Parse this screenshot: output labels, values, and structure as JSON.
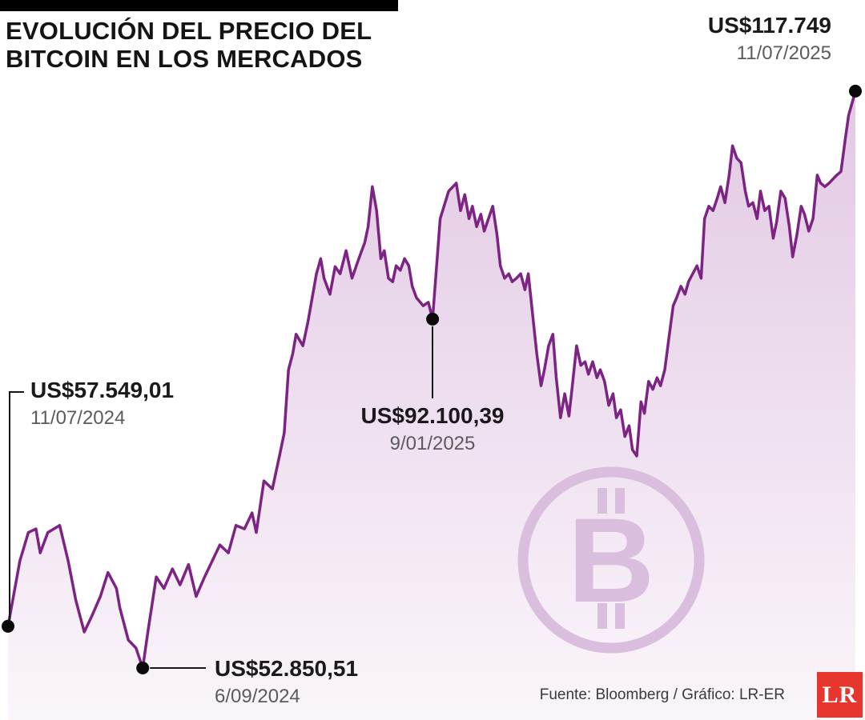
{
  "title": {
    "line1": "EVOLUCIÓN DEL PRECIO DEL",
    "line2": "BITCOIN EN LOS MERCADOS"
  },
  "source": "Fuente: Bloomberg / Gráfico: LR-ER",
  "logo": {
    "text": "LR",
    "color": "#e6362e"
  },
  "colors": {
    "line": "#7c2383",
    "fill_top": "rgba(158,74,164,0.30)",
    "fill_bottom": "rgba(158,74,164,0.05)",
    "watermark": "#d9bedd",
    "dot": "#0a0a0a",
    "connector": "#161616"
  },
  "annotations": [
    {
      "id": "start",
      "value": "US$57.549,01",
      "date": "11/07/2024"
    },
    {
      "id": "low",
      "value": "US$52.850,51",
      "date": "6/09/2024"
    },
    {
      "id": "mid",
      "value": "US$92.100,39",
      "date": "9/01/2025"
    },
    {
      "id": "end",
      "value": "US$117.749",
      "date": "11/07/2025"
    }
  ],
  "chart_data": {
    "type": "area",
    "title": "Evolución del precio del bitcoin en los mercados",
    "x_range": [
      "11/07/2024",
      "11/07/2025"
    ],
    "y_unit": "miles de US$",
    "axes_visible": false,
    "legend": "none",
    "value_domain_kusd": [
      47,
      128
    ],
    "markers": [
      {
        "t": 0.0,
        "value_kusd": 57.549
      },
      {
        "t": 0.159,
        "value_kusd": 52.85
      },
      {
        "t": 0.501,
        "value_kusd": 92.1
      },
      {
        "t": 1.0,
        "value_kusd": 117.749
      }
    ],
    "points": [
      [
        0,
        57.55
      ],
      [
        0.014,
        64.9
      ],
      [
        0.024,
        68.1
      ],
      [
        0.033,
        68.5
      ],
      [
        0.038,
        65.8
      ],
      [
        0.047,
        68.1
      ],
      [
        0.061,
        68.9
      ],
      [
        0.071,
        64.9
      ],
      [
        0.08,
        60.5
      ],
      [
        0.09,
        56.9
      ],
      [
        0.099,
        58.7
      ],
      [
        0.109,
        60.9
      ],
      [
        0.118,
        63.6
      ],
      [
        0.128,
        61.8
      ],
      [
        0.132,
        59.6
      ],
      [
        0.142,
        56
      ],
      [
        0.151,
        55.1
      ],
      [
        0.159,
        52.85
      ],
      [
        0.165,
        56.9
      ],
      [
        0.175,
        63.1
      ],
      [
        0.184,
        61.8
      ],
      [
        0.194,
        64
      ],
      [
        0.203,
        62.2
      ],
      [
        0.213,
        64.5
      ],
      [
        0.222,
        60.9
      ],
      [
        0.232,
        63.1
      ],
      [
        0.241,
        64.9
      ],
      [
        0.25,
        66.7
      ],
      [
        0.26,
        65.8
      ],
      [
        0.269,
        68.9
      ],
      [
        0.279,
        68.5
      ],
      [
        0.288,
        70.3
      ],
      [
        0.293,
        68.1
      ],
      [
        0.302,
        73.9
      ],
      [
        0.312,
        73
      ],
      [
        0.321,
        77
      ],
      [
        0.326,
        79.3
      ],
      [
        0.331,
        86.4
      ],
      [
        0.336,
        88.2
      ],
      [
        0.34,
        90.4
      ],
      [
        0.348,
        89.1
      ],
      [
        0.354,
        91.8
      ],
      [
        0.364,
        97.2
      ],
      [
        0.369,
        98.9
      ],
      [
        0.373,
        96.7
      ],
      [
        0.38,
        94.9
      ],
      [
        0.386,
        98
      ],
      [
        0.392,
        97.2
      ],
      [
        0.399,
        99.8
      ],
      [
        0.406,
        96.7
      ],
      [
        0.414,
        98.9
      ],
      [
        0.421,
        100.7
      ],
      [
        0.425,
        102.5
      ],
      [
        0.43,
        107
      ],
      [
        0.435,
        104.3
      ],
      [
        0.44,
        98.9
      ],
      [
        0.444,
        99.8
      ],
      [
        0.449,
        96.7
      ],
      [
        0.454,
        96.3
      ],
      [
        0.458,
        98.1
      ],
      [
        0.463,
        97.6
      ],
      [
        0.468,
        98.9
      ],
      [
        0.473,
        98.1
      ],
      [
        0.477,
        95.8
      ],
      [
        0.482,
        94.5
      ],
      [
        0.49,
        93.6
      ],
      [
        0.496,
        94
      ],
      [
        0.501,
        92.1
      ],
      [
        0.51,
        103.4
      ],
      [
        0.52,
        106.5
      ],
      [
        0.529,
        107.4
      ],
      [
        0.534,
        104.3
      ],
      [
        0.539,
        106.1
      ],
      [
        0.544,
        103.4
      ],
      [
        0.548,
        104.8
      ],
      [
        0.553,
        102.5
      ],
      [
        0.558,
        103.9
      ],
      [
        0.562,
        102
      ],
      [
        0.567,
        103.4
      ],
      [
        0.572,
        104.8
      ],
      [
        0.577,
        101.6
      ],
      [
        0.581,
        98.1
      ],
      [
        0.586,
        96.7
      ],
      [
        0.591,
        97.2
      ],
      [
        0.595,
        96.3
      ],
      [
        0.6,
        96.7
      ],
      [
        0.605,
        97.2
      ],
      [
        0.61,
        95.4
      ],
      [
        0.614,
        97.2
      ],
      [
        0.619,
        92.7
      ],
      [
        0.624,
        88.2
      ],
      [
        0.629,
        84.6
      ],
      [
        0.633,
        86.4
      ],
      [
        0.638,
        89.1
      ],
      [
        0.643,
        90.4
      ],
      [
        0.647,
        85.5
      ],
      [
        0.652,
        81
      ],
      [
        0.657,
        83.7
      ],
      [
        0.662,
        81.2
      ],
      [
        0.666,
        84.6
      ],
      [
        0.671,
        89.1
      ],
      [
        0.676,
        86.9
      ],
      [
        0.681,
        87.3
      ],
      [
        0.685,
        85.9
      ],
      [
        0.69,
        87.3
      ],
      [
        0.695,
        85.5
      ],
      [
        0.699,
        86.4
      ],
      [
        0.704,
        85.1
      ],
      [
        0.709,
        82.4
      ],
      [
        0.714,
        83.7
      ],
      [
        0.718,
        81
      ],
      [
        0.723,
        81.9
      ],
      [
        0.728,
        78.9
      ],
      [
        0.733,
        80.1
      ],
      [
        0.737,
        77.4
      ],
      [
        0.742,
        76.7
      ],
      [
        0.747,
        82.8
      ],
      [
        0.751,
        81.5
      ],
      [
        0.756,
        85.1
      ],
      [
        0.761,
        84.2
      ],
      [
        0.766,
        85.5
      ],
      [
        0.77,
        84.6
      ],
      [
        0.775,
        86.4
      ],
      [
        0.78,
        90
      ],
      [
        0.785,
        93.6
      ],
      [
        0.789,
        94.5
      ],
      [
        0.794,
        95.8
      ],
      [
        0.799,
        94.9
      ],
      [
        0.803,
        96.3
      ],
      [
        0.808,
        97.2
      ],
      [
        0.813,
        98.1
      ],
      [
        0.818,
        96.7
      ],
      [
        0.822,
        103.4
      ],
      [
        0.827,
        104.8
      ],
      [
        0.832,
        104.3
      ],
      [
        0.837,
        105.7
      ],
      [
        0.841,
        107
      ],
      [
        0.846,
        105.2
      ],
      [
        0.851,
        108.3
      ],
      [
        0.855,
        111.6
      ],
      [
        0.86,
        110.2
      ],
      [
        0.865,
        109.7
      ],
      [
        0.87,
        106.5
      ],
      [
        0.874,
        104.8
      ],
      [
        0.879,
        105.2
      ],
      [
        0.884,
        103.4
      ],
      [
        0.888,
        106.5
      ],
      [
        0.893,
        104.3
      ],
      [
        0.898,
        104.8
      ],
      [
        0.903,
        101.2
      ],
      [
        0.907,
        103
      ],
      [
        0.912,
        106.5
      ],
      [
        0.917,
        105.7
      ],
      [
        0.922,
        102.5
      ],
      [
        0.926,
        99.1
      ],
      [
        0.931,
        101.6
      ],
      [
        0.936,
        104.8
      ],
      [
        0.94,
        103.9
      ],
      [
        0.945,
        102
      ],
      [
        0.95,
        103.4
      ],
      [
        0.955,
        108.3
      ],
      [
        0.959,
        107.4
      ],
      [
        0.964,
        107
      ],
      [
        0.969,
        107.4
      ],
      [
        0.973,
        107.8
      ],
      [
        0.978,
        108.3
      ],
      [
        0.983,
        108.7
      ],
      [
        0.988,
        112.3
      ],
      [
        0.992,
        115
      ],
      [
        1,
        117.75
      ]
    ]
  }
}
